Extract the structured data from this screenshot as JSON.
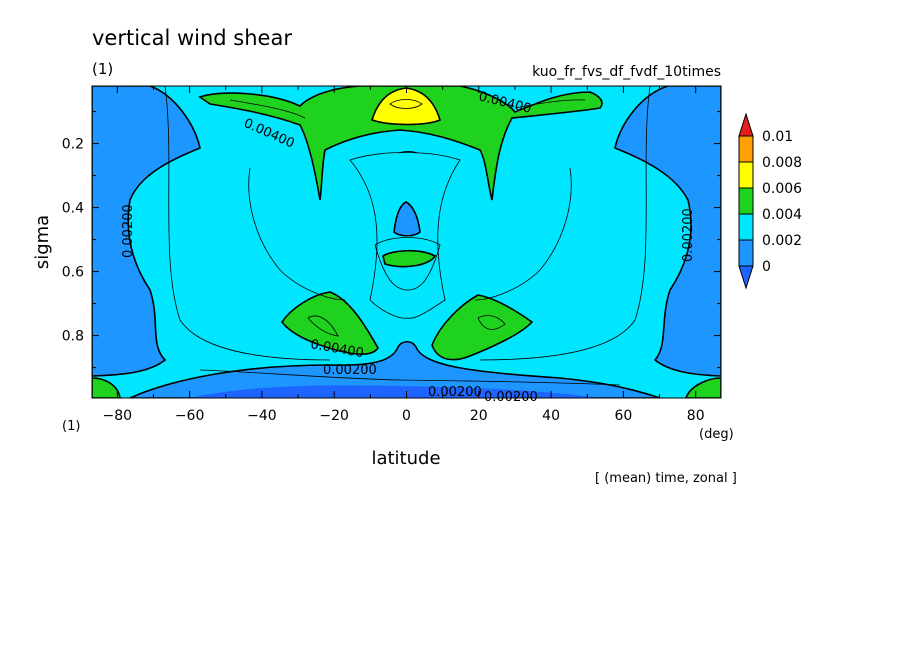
{
  "header": {
    "title": "vertical wind shear",
    "panel_label": "(1)",
    "experiment": "kuo_fr_fvs_df_fvdf_10times",
    "axis_note": "(1)",
    "x_unit": "(deg)",
    "footer_note": "[ (mean) time, zonal ]"
  },
  "chart_data": {
    "type": "heatmap",
    "title": "vertical wind shear",
    "xlabel": "latitude",
    "ylabel": "sigma",
    "xlim": [
      -87,
      87
    ],
    "ylim": [
      0.995,
      0.02
    ],
    "x_ticks": [
      -80,
      -60,
      -40,
      -20,
      0,
      20,
      40,
      60,
      80
    ],
    "x_tick_labels": [
      "−80",
      "−60",
      "−40",
      "−20",
      "0",
      "20",
      "40",
      "60",
      "80"
    ],
    "y_ticks": [
      0.2,
      0.4,
      0.6,
      0.8
    ],
    "y_tick_labels": [
      "0.2",
      "0.4",
      "0.6",
      "0.8"
    ],
    "colorbar": {
      "levels": [
        "0",
        "0.002",
        "0.004",
        "0.006",
        "0.008",
        "0.01"
      ],
      "colors": [
        "#1e64ff",
        "#1e96ff",
        "#00e6ff",
        "#1ed21e",
        "#ffff00",
        "#ffa000",
        "#e61e1e"
      ]
    },
    "contour_labels": [
      "0.00400",
      "0.00400",
      "0.00200",
      "0.00200",
      "0.00400",
      "0.00200",
      "0.00200",
      "0.00200"
    ]
  }
}
